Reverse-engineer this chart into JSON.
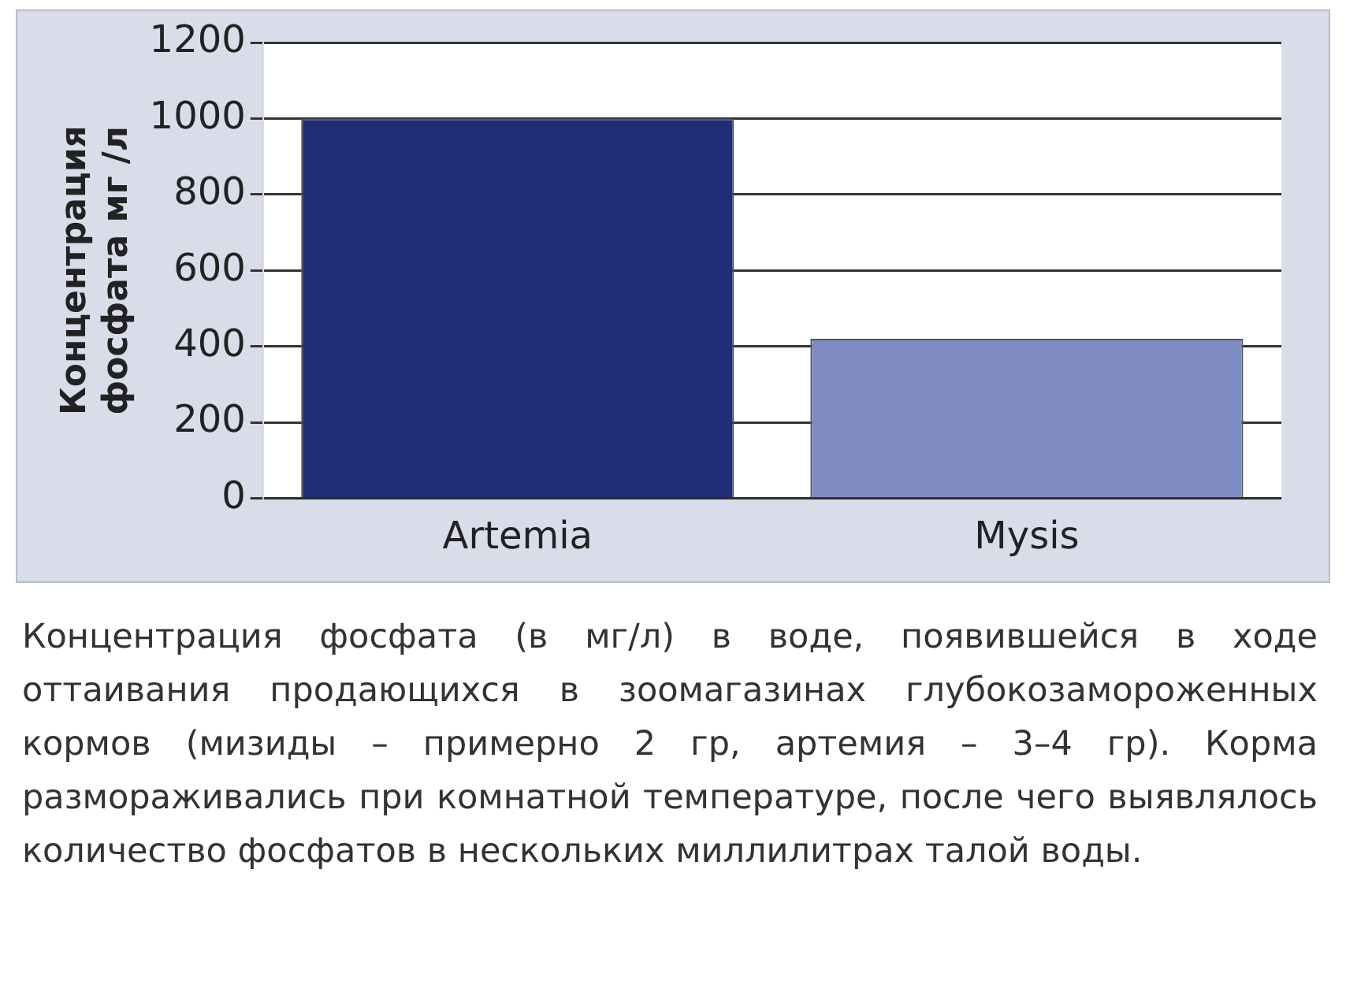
{
  "chart_data": {
    "type": "bar",
    "ylabel": "Концентрация фосфата мг /л",
    "categories": [
      "Artemia",
      "Mysis"
    ],
    "values": [
      1000,
      420
    ],
    "colors": [
      "#1f2d78",
      "#7f8cc4"
    ],
    "ylim": [
      0,
      1200
    ],
    "yticks": [
      0,
      200,
      400,
      600,
      800,
      1000,
      1200
    ],
    "grid": "y",
    "annotations": [
      "Концентрация фосфата (в мг/л) в воде, появившейся в ходе оттаивания продающихся в зоомагазинах глубокозамороженных кормов (мизиды – примерно 2 гр, артемия – 3–4 гр). Корма размораживались при комнатной температуре, после чего выявлялось количество фосфатов в нескольких миллилитрах талой воды."
    ]
  }
}
